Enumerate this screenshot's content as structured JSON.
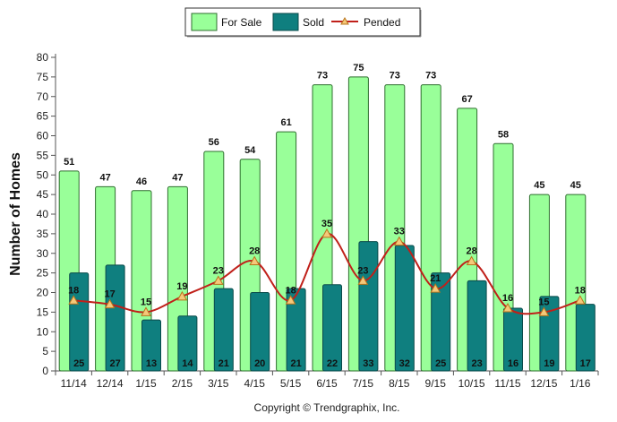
{
  "chart_data": {
    "type": "bar",
    "title": "",
    "xlabel": "",
    "ylabel": "Number of Homes",
    "ylim": [
      0,
      80
    ],
    "yticks": [
      0,
      5,
      10,
      15,
      20,
      25,
      30,
      35,
      40,
      45,
      50,
      55,
      60,
      65,
      70,
      75,
      80
    ],
    "grid": false,
    "legend_position": "top-center",
    "categories": [
      "11/14",
      "12/14",
      "1/15",
      "2/15",
      "3/15",
      "4/15",
      "5/15",
      "6/15",
      "7/15",
      "8/15",
      "9/15",
      "10/15",
      "11/15",
      "12/15",
      "1/16"
    ],
    "series": [
      {
        "name": "For Sale",
        "kind": "bar",
        "color": "#99ff99",
        "stroke": "#2f6f2f",
        "values": [
          51,
          47,
          46,
          47,
          56,
          54,
          61,
          73,
          75,
          73,
          73,
          67,
          58,
          45,
          45
        ]
      },
      {
        "name": "Sold",
        "kind": "bar",
        "color": "#0f7f7f",
        "stroke": "#0a4a4a",
        "values": [
          25,
          27,
          13,
          14,
          21,
          20,
          21,
          22,
          33,
          32,
          25,
          23,
          16,
          19,
          17
        ]
      },
      {
        "name": "Pended",
        "kind": "line",
        "color": "#c0201a",
        "marker_color": "#f5c87a",
        "values": [
          18,
          17,
          15,
          19,
          23,
          28,
          18,
          35,
          23,
          33,
          21,
          28,
          16,
          15,
          18
        ]
      }
    ],
    "annotations": [
      "Copyright © Trendgraphix, Inc."
    ]
  }
}
